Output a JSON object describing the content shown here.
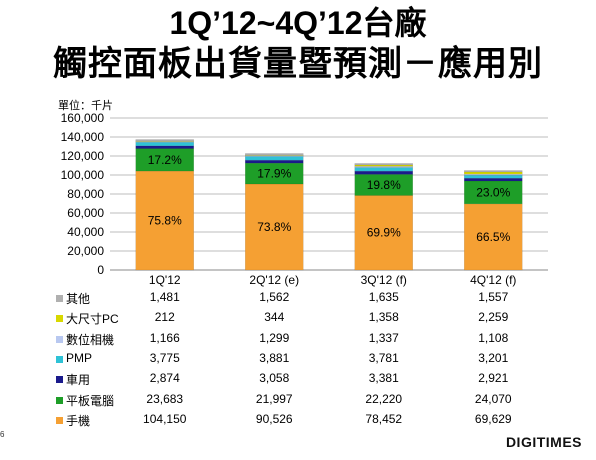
{
  "title_line1": "1Q’12~4Q’12台廠",
  "title_line2": "觸控面板出貨量暨預測－應用別",
  "unit_label": "單位：千片",
  "page_number": "6",
  "logo": "DIGITIMES",
  "colors": {
    "其他": "#b0b0b0",
    "大尺寸PC": "#d8d800",
    "數位相機": "#b8c8f0",
    "PMP": "#2ec2d6",
    "車用": "#1a1a8c",
    "平板電腦": "#1e9e28",
    "手機": "#f5a033"
  },
  "chart_data": {
    "type": "bar",
    "stacked": true,
    "categories": [
      "1Q'12",
      "2Q'12 (e)",
      "3Q'12 (f)",
      "4Q'12 (f)"
    ],
    "ylim": [
      0,
      160000
    ],
    "yticks": [
      "0",
      "20,000",
      "40,000",
      "60,000",
      "80,000",
      "100,000",
      "120,000",
      "140,000",
      "160,000"
    ],
    "grid": true,
    "series": [
      {
        "name": "手機",
        "values": [
          104150,
          90526,
          78452,
          69629
        ],
        "display": [
          "104,150",
          "90,526",
          "78,452",
          "69,629"
        ]
      },
      {
        "name": "平板電腦",
        "values": [
          23683,
          21997,
          22220,
          24070
        ],
        "display": [
          "23,683",
          "21,997",
          "22,220",
          "24,070"
        ]
      },
      {
        "name": "車用",
        "values": [
          2874,
          3058,
          3381,
          2921
        ],
        "display": [
          "2,874",
          "3,058",
          "3,381",
          "2,921"
        ]
      },
      {
        "name": "PMP",
        "values": [
          3775,
          3881,
          3781,
          3201
        ],
        "display": [
          "3,775",
          "3,881",
          "3,781",
          "3,201"
        ]
      },
      {
        "name": "數位相機",
        "values": [
          1166,
          1299,
          1337,
          1108
        ],
        "display": [
          "1,166",
          "1,299",
          "1,337",
          "1,108"
        ]
      },
      {
        "name": "大尺寸PC",
        "values": [
          212,
          344,
          1358,
          2259
        ],
        "display": [
          "212",
          "344",
          "1,358",
          "2,259"
        ]
      },
      {
        "name": "其他",
        "values": [
          1481,
          1562,
          1635,
          1557
        ],
        "display": [
          "1,481",
          "1,562",
          "1,635",
          "1,557"
        ]
      }
    ],
    "phone_pct": [
      "75.8%",
      "73.8%",
      "69.9%",
      "66.5%"
    ],
    "tablet_pct": [
      "17.2%",
      "17.9%",
      "19.8%",
      "23.0%"
    ]
  }
}
